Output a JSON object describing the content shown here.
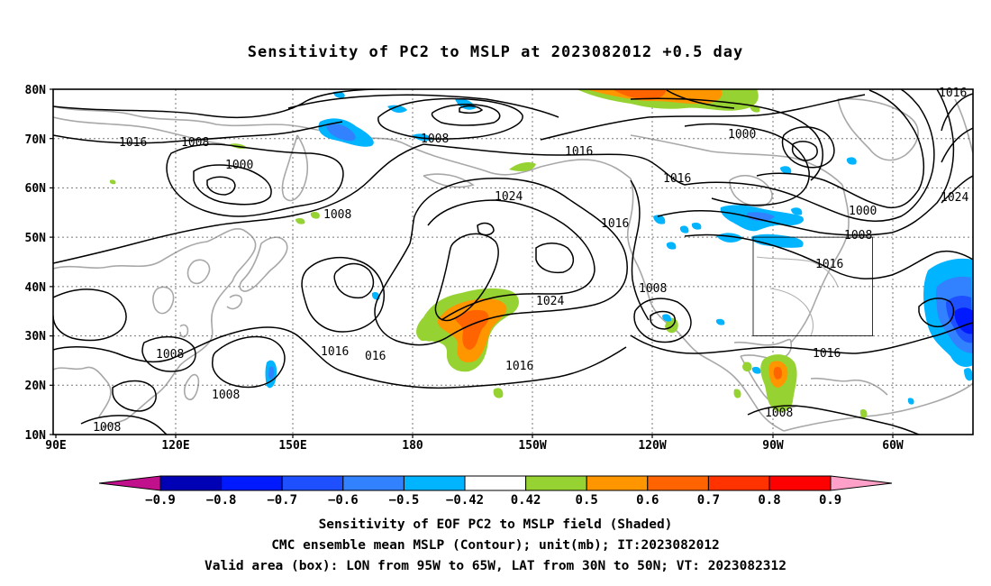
{
  "title": "Sensitivity of PC2 to MSLP at 2023082012 +0.5 day",
  "axes": {
    "lat_labels": [
      "80N",
      "70N",
      "60N",
      "50N",
      "40N",
      "30N",
      "20N",
      "10N"
    ],
    "lon_labels": [
      "90E",
      "120E",
      "150E",
      "180",
      "150W",
      "120W",
      "90W",
      "60W"
    ]
  },
  "contour_labels": {
    "c1016_a": "1016",
    "c1008_a": "1008",
    "c1000_a": "1000",
    "c1008_b": "1008",
    "c1008_c": "1008",
    "c1016_b": "1016",
    "c1024_a": "1024",
    "c1016_c": "1016",
    "c1016_d": "1016",
    "c1000_b": "1000",
    "c1000_c": "1000",
    "c1008_d": "1008",
    "c1016_e": "1016",
    "c1024_b": "1024",
    "c1008_e": "1008",
    "c1024_c": "1024",
    "c1016_f": "1016",
    "c1016_g": "016",
    "c1016_h": "1016",
    "c1008_f": "1008",
    "c1008_g": "1008",
    "c1008_h": "1008",
    "c1016_i": "1016",
    "c1008_i": "1008",
    "c1010_top": "1016"
  },
  "colorbar": {
    "labels": [
      "-0.9",
      "-0.8",
      "-0.7",
      "-0.6",
      "-0.5",
      "-0.42",
      "0.42",
      "0.5",
      "0.6",
      "0.7",
      "0.8",
      "0.9"
    ],
    "colors": [
      "#0000b4",
      "#0019ff",
      "#1e50ff",
      "#3282ff",
      "#00b4ff",
      "#ffffff",
      "#96d232",
      "#ff9600",
      "#ff6400",
      "#ff3200",
      "#ff0000"
    ],
    "low_arrow": "#c0108c",
    "high_arrow": "#ffa0c8"
  },
  "captions": {
    "line1": "Sensitivity of EOF PC2 to MSLP field (Shaded)",
    "line2": "CMC ensemble mean MSLP (Contour); unit(mb); IT:2023082012",
    "line3": "Valid area (box): LON from 95W to 65W, LAT from 30N to 50N; VT: 2023082312"
  }
}
